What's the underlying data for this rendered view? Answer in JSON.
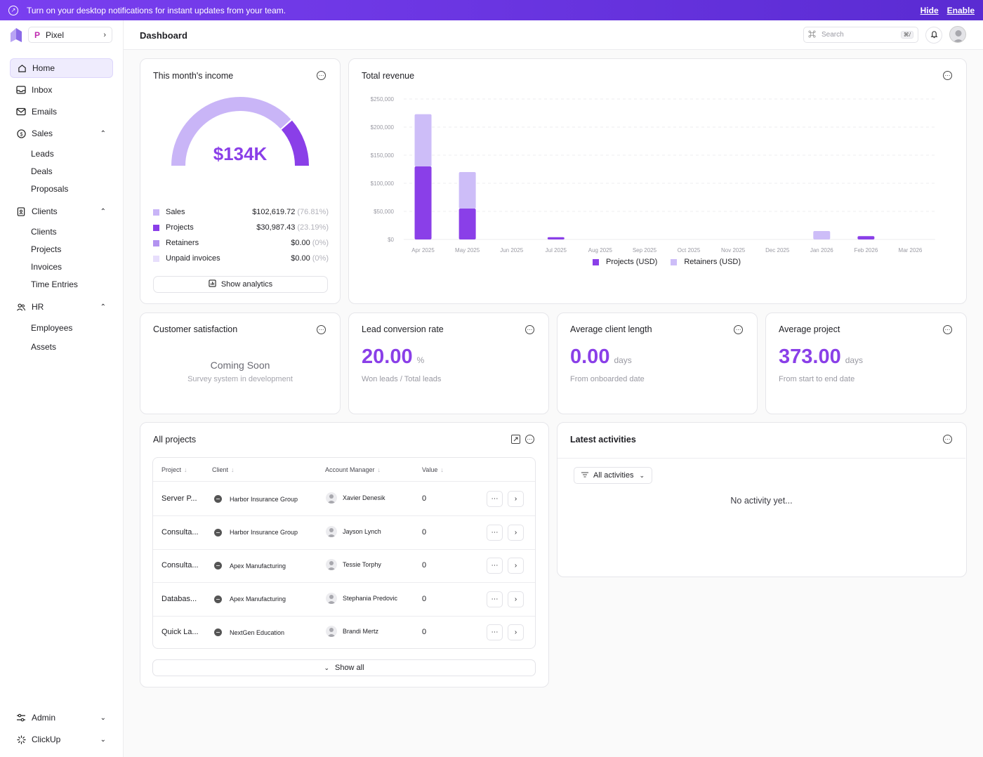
{
  "banner": {
    "text": "Turn on your desktop notifications for instant updates from your team.",
    "hide_label": "Hide",
    "enable_label": "Enable"
  },
  "sidebar": {
    "org_name": "Pixel",
    "org_mark": "P",
    "items": [
      {
        "label": "Home",
        "icon": "home-icon"
      },
      {
        "label": "Inbox",
        "icon": "inbox-icon"
      },
      {
        "label": "Emails",
        "icon": "mail-icon"
      },
      {
        "label": "Sales",
        "icon": "dollar-icon"
      },
      {
        "label": "Clients",
        "icon": "contact-card-icon"
      },
      {
        "label": "HR",
        "icon": "users-icon"
      }
    ],
    "sales_sub": [
      "Leads",
      "Deals",
      "Proposals"
    ],
    "clients_sub": [
      "Clients",
      "Projects",
      "Invoices",
      "Time Entries"
    ],
    "hr_sub": [
      "Employees",
      "Assets"
    ],
    "bottom": [
      {
        "label": "Admin",
        "icon": "sliders-icon"
      },
      {
        "label": "ClickUp",
        "icon": "clickup-icon"
      }
    ]
  },
  "header": {
    "title": "Dashboard",
    "search_placeholder": "Search",
    "search_shortcut": "⌘/"
  },
  "income": {
    "title": "This month's income",
    "total": "$134K",
    "legend": [
      {
        "label": "Sales",
        "value": "$102,619.72",
        "pct": "(76.81%)",
        "color": "#c9b5f7",
        "fraction": 0.7681
      },
      {
        "label": "Projects",
        "value": "$30,987.43",
        "pct": "(23.19%)",
        "color": "#8a3fe8",
        "fraction": 0.2319
      },
      {
        "label": "Retainers",
        "value": "$0.00",
        "pct": "(0%)",
        "color": "#b393f0",
        "fraction": 0
      },
      {
        "label": "Unpaid invoices",
        "value": "$0.00",
        "pct": "(0%)",
        "color": "#e7defc",
        "fraction": 0
      }
    ],
    "button": "Show analytics"
  },
  "revenue": {
    "title": "Total revenue",
    "legend_projects": "Projects (USD)",
    "legend_retainers": "Retainers (USD)"
  },
  "chart_data": {
    "type": "bar",
    "stacked": true,
    "categories": [
      "Apr 2025",
      "May 2025",
      "Jun 2025",
      "Jul 2025",
      "Aug 2025",
      "Sep 2025",
      "Oct 2025",
      "Nov 2025",
      "Dec 2025",
      "Jan 2026",
      "Feb 2026",
      "Mar 2026"
    ],
    "series": [
      {
        "name": "Projects (USD)",
        "color": "#8a3fe8",
        "values": [
          130000,
          55000,
          0,
          4000,
          0,
          0,
          0,
          0,
          0,
          0,
          6000,
          0
        ]
      },
      {
        "name": "Retainers (USD)",
        "color": "#cdbdf8",
        "values": [
          93000,
          65000,
          0,
          0,
          0,
          0,
          0,
          0,
          0,
          15000,
          0,
          0
        ]
      }
    ],
    "yticks": [
      "$250,000",
      "$200,000",
      "$150,000",
      "$100,000",
      "$50,000",
      "$0"
    ],
    "ylim": [
      0,
      250000
    ],
    "grid": true,
    "legend": "bottom"
  },
  "satisfaction": {
    "title": "Customer satisfaction",
    "heading": "Coming Soon",
    "sub": "Survey system in development"
  },
  "lead_conversion": {
    "title": "Lead conversion rate",
    "value": "20.00",
    "unit": "%",
    "sub": "Won leads / Total leads"
  },
  "client_length": {
    "title": "Average client length",
    "value": "0.00",
    "unit": "days",
    "sub": "From onboarded date"
  },
  "avg_project": {
    "title": "Average project",
    "value": "373.00",
    "unit": "days",
    "sub": "From start to end date"
  },
  "projects": {
    "title": "All projects",
    "columns": [
      "Project",
      "Client",
      "Account Manager",
      "Value"
    ],
    "rows": [
      {
        "project": "Server P...",
        "client": "Harbor Insurance Group",
        "manager": "Xavier Denesik",
        "value": "0"
      },
      {
        "project": "Consulta...",
        "client": "Harbor Insurance Group",
        "manager": "Jayson Lynch",
        "value": "0"
      },
      {
        "project": "Consulta...",
        "client": "Apex Manufacturing",
        "manager": "Tessie Torphy",
        "value": "0"
      },
      {
        "project": "Databas...",
        "client": "Apex Manufacturing",
        "manager": "Stephania Predovic",
        "value": "0"
      },
      {
        "project": "Quick La...",
        "client": "NextGen Education",
        "manager": "Brandi Mertz",
        "value": "0"
      }
    ],
    "show_all": "Show all"
  },
  "activities": {
    "title": "Latest activities",
    "filter": "All activities",
    "empty": "No activity yet..."
  }
}
